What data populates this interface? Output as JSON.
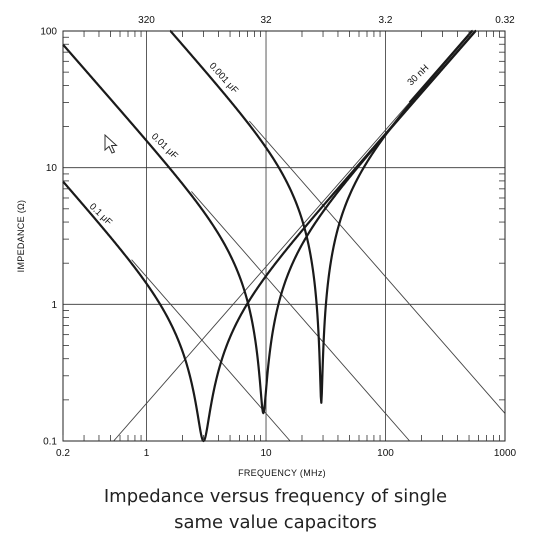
{
  "chart_data": {
    "type": "line",
    "xscale": "log",
    "yscale": "log",
    "xlim": [
      0.2,
      1000
    ],
    "ylim": [
      0.1,
      100
    ],
    "xlabel": "FREQUENCY (MHz)",
    "ylabel": "IMPEDANCE (Ω)",
    "x_ticks": [
      "0.2",
      "1",
      "10",
      "100",
      "1000"
    ],
    "y_ticks": [
      "0.1",
      "1",
      "10",
      "100"
    ],
    "top_axis_ticks": [
      "320",
      "32",
      "3.2",
      "0.32"
    ],
    "grid": true,
    "inductance_nH": 30,
    "series": [
      {
        "name": "0.1 μF",
        "capacitance_uF": 0.1,
        "resonance_MHz": 3.0,
        "min_impedance": 0.1
      },
      {
        "name": "0.01 μF",
        "capacitance_uF": 0.01,
        "resonance_MHz": 9.5,
        "min_impedance": 0.16
      },
      {
        "name": "0.001 μF",
        "capacitance_uF": 0.001,
        "resonance_MHz": 29,
        "min_impedance": 0.19
      },
      {
        "name": "30 nH",
        "inductance_nH": 30
      }
    ],
    "caption": [
      "Impedance versus frequency of single",
      "same value capacitors"
    ]
  }
}
